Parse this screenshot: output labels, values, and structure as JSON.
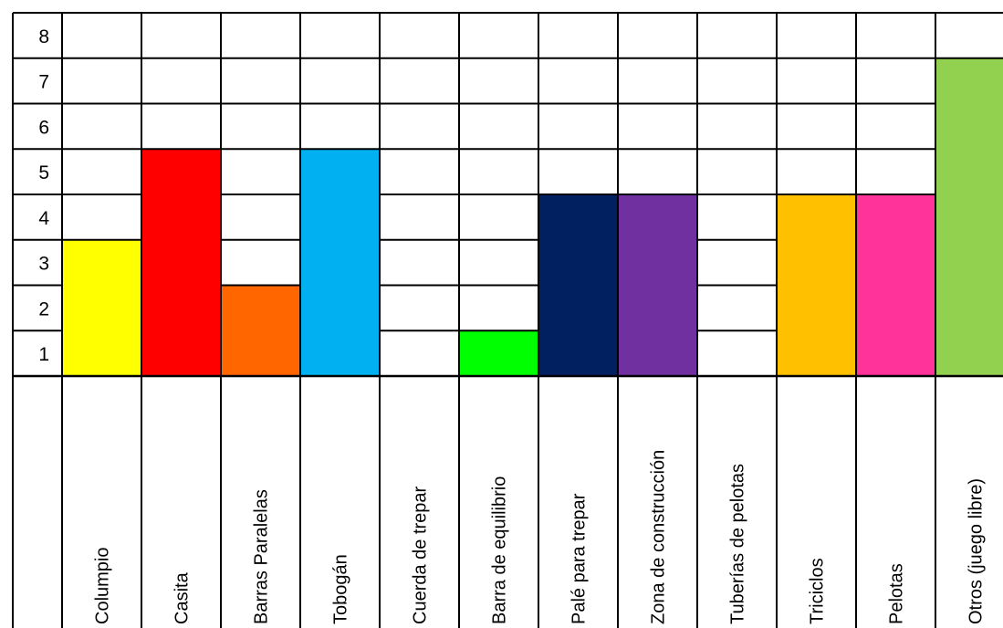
{
  "chart_data": {
    "type": "bar",
    "categories": [
      "Columpio",
      "Casita",
      "Barras Paralelas",
      "Tobogán",
      "Cuerda de trepar",
      "Barra de equilibrio",
      "Palé para trepar",
      "Zona de construcción",
      "Tuberías de pelotas",
      "Triciclos",
      "Pelotas",
      "Otros (juego libre)"
    ],
    "values": [
      3,
      5,
      2,
      5,
      0,
      1,
      4,
      4,
      0,
      4,
      4,
      7
    ],
    "colors": [
      "#FFFF00",
      "#FF0000",
      "#FF6600",
      "#00B0F0",
      "#FFFFFF",
      "#00FF00",
      "#002060",
      "#7030A0",
      "#FFFFFF",
      "#FFC000",
      "#FF3399",
      "#92D050"
    ],
    "y_ticks": [
      "1",
      "2",
      "3",
      "4",
      "5",
      "6",
      "7",
      "8"
    ],
    "ylim": [
      0,
      8
    ],
    "grid": true,
    "title": "",
    "xlabel": "",
    "ylabel": ""
  }
}
